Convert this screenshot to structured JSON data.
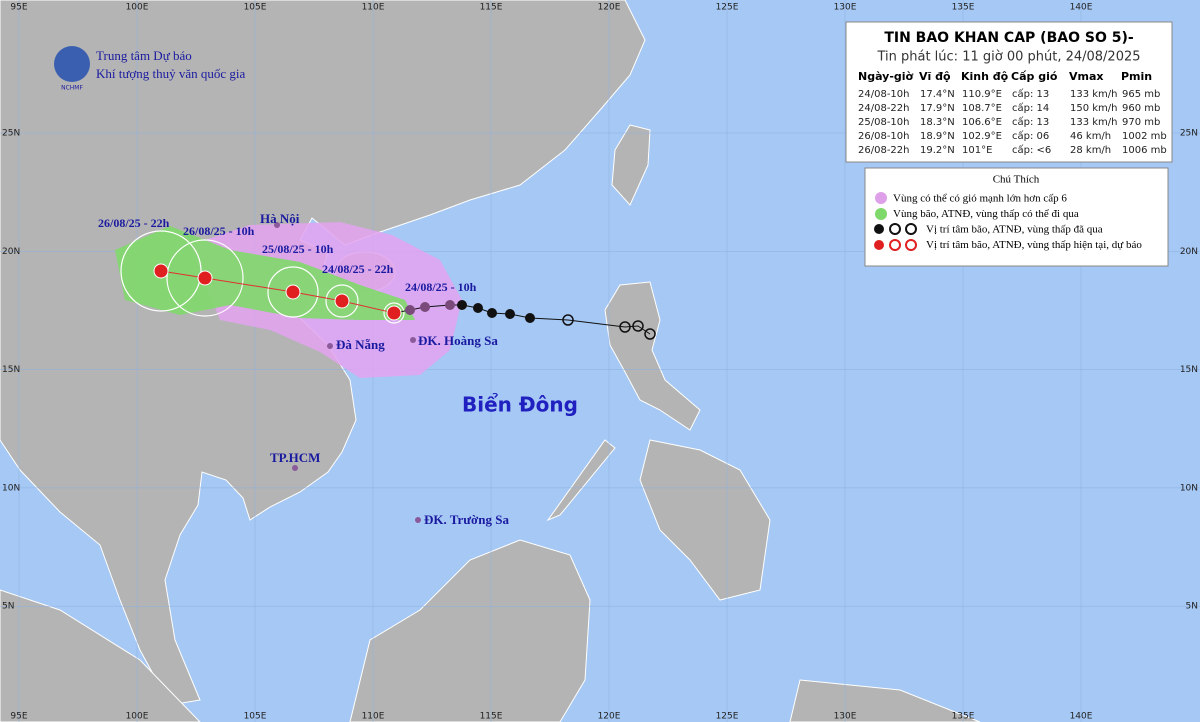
{
  "header": {
    "logo": "NCHMF",
    "line1": "Trung tâm Dự báo",
    "line2": "Khí tượng thuỷ văn quốc gia"
  },
  "grid": {
    "lon_labels": [
      "95E",
      "100E",
      "105E",
      "110E",
      "115E",
      "120E",
      "125E",
      "130E",
      "135E",
      "140E"
    ],
    "lat_labels": [
      "25N",
      "20N",
      "15N",
      "10N",
      "5N"
    ]
  },
  "places": {
    "ha_noi": "Hà Nội",
    "da_nang": "Đà Nẵng",
    "hoang_sa": "ĐK. Hoàng Sa",
    "hcm": "TP.HCM",
    "truong_sa": "ĐK. Trường Sa",
    "sea": "Biển Đông"
  },
  "track_labels": [
    "24/08/25 - 10h",
    "24/08/25 - 22h",
    "25/08/25 - 10h",
    "26/08/25 - 10h",
    "26/08/25 - 22h"
  ],
  "info": {
    "title": "TIN BAO KHAN CAP (BAO SO 5)-",
    "subtitle": "Tin phát lúc: 11 giờ 00 phút, 24/08/2025",
    "columns": [
      "Ngày-giờ",
      "Vĩ độ",
      "Kinh độ",
      "Cấp gió",
      "Vmax",
      "Pmin"
    ],
    "rows": [
      [
        "24/08-10h",
        "17.4°N",
        "110.9°E",
        "cấp: 13",
        "133 km/h",
        "965 mb"
      ],
      [
        "24/08-22h",
        "17.9°N",
        "108.7°E",
        "cấp: 14",
        "150 km/h",
        "960 mb"
      ],
      [
        "25/08-10h",
        "18.3°N",
        "106.6°E",
        "cấp: 13",
        "133 km/h",
        "970 mb"
      ],
      [
        "26/08-10h",
        "18.9°N",
        "102.9°E",
        "cấp: 06",
        "46 km/h",
        "1002 mb"
      ],
      [
        "26/08-22h",
        "19.2°N",
        "101°E",
        "cấp: <6",
        "28 km/h",
        "1006 mb"
      ]
    ]
  },
  "legend": {
    "title": "Chú Thích",
    "items": [
      "Vùng có thể có gió mạnh lớn hơn cấp 6",
      "Vùng bão, ATNĐ, vùng thấp có thể đi qua",
      "Vị trí tâm bão, ATNĐ, vùng thấp đã qua",
      "Vị trí tâm bão, ATNĐ, vùng thấp hiện tại, dự báo"
    ]
  }
}
